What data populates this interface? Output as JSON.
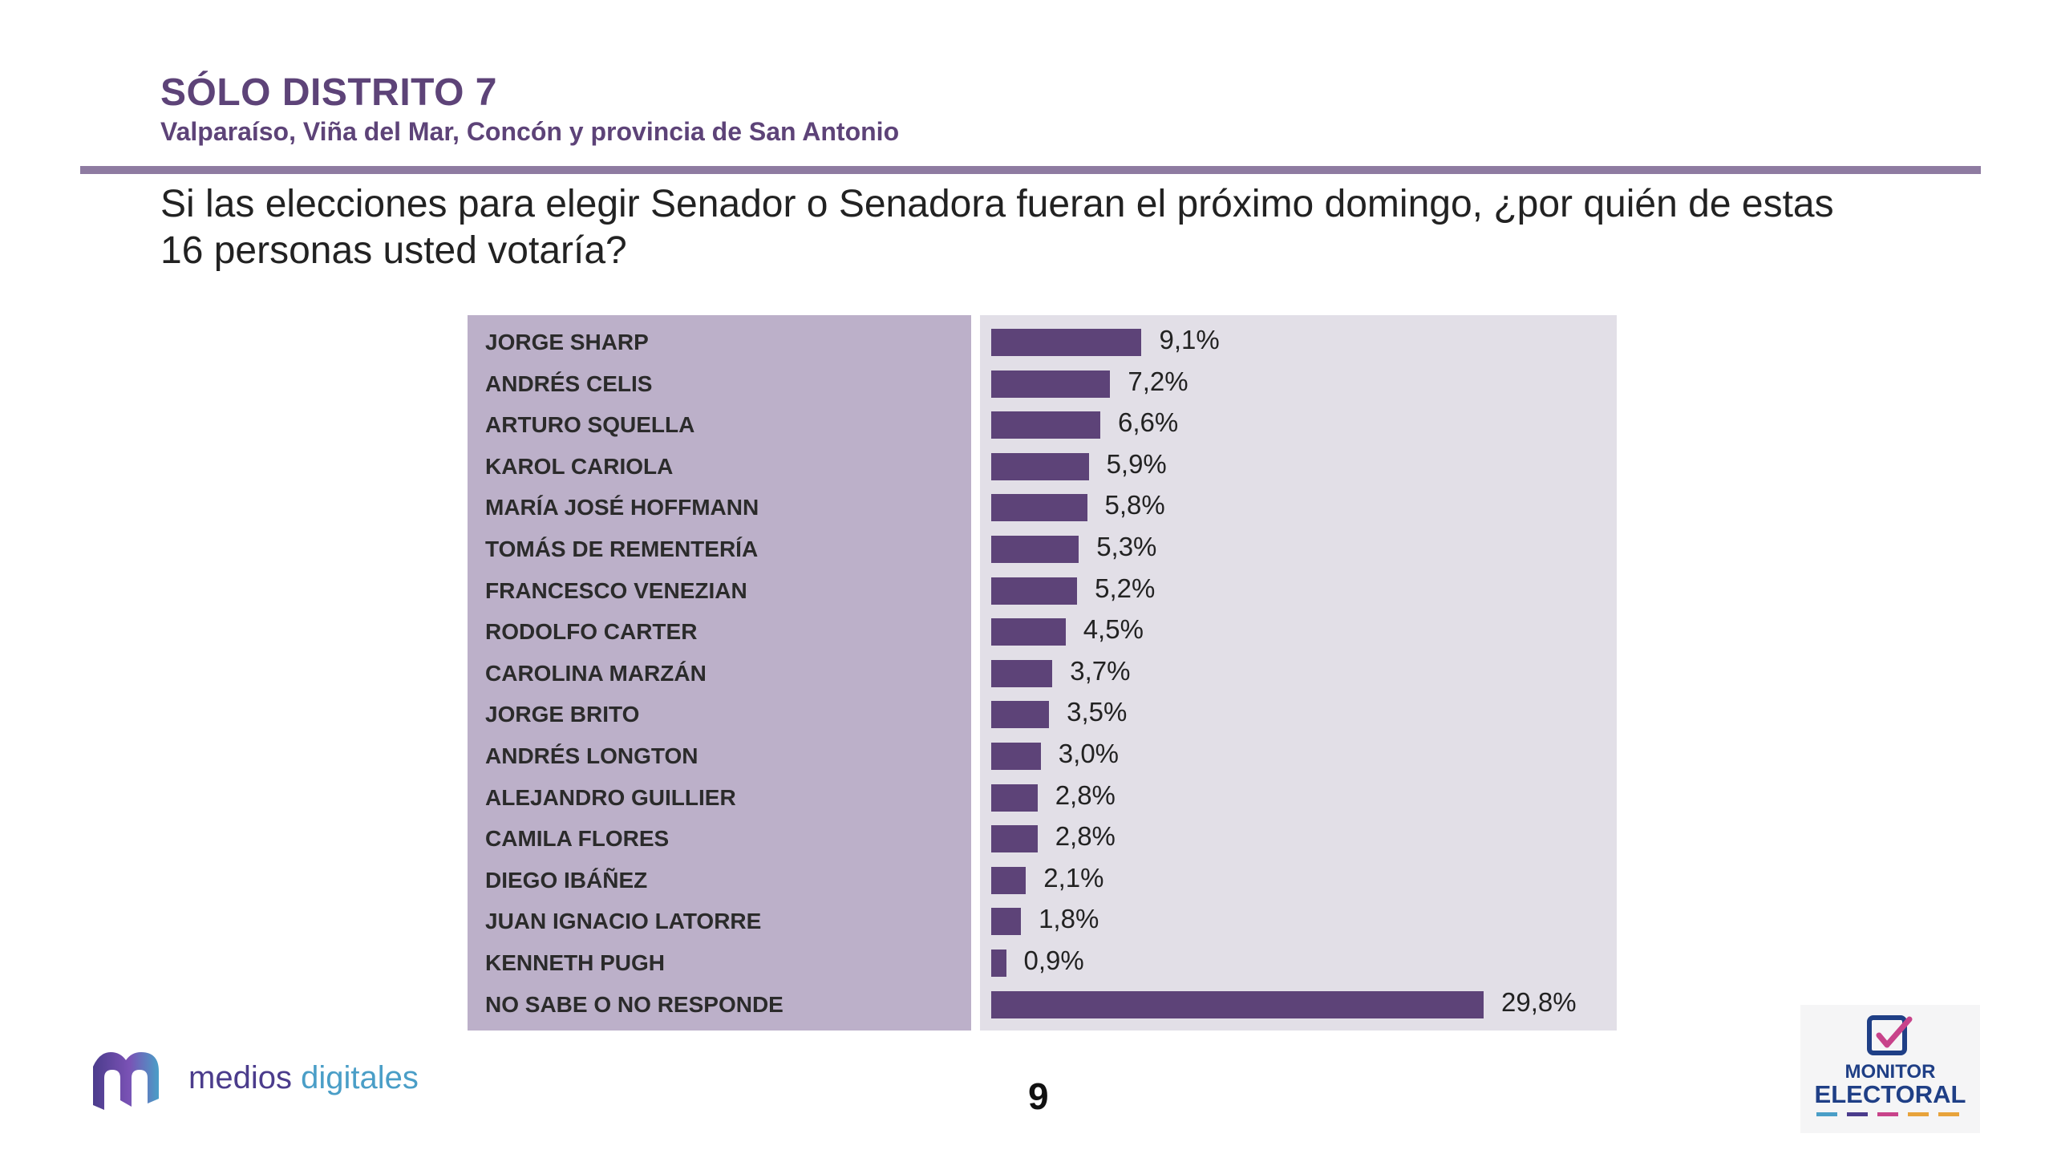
{
  "header": {
    "title": "SÓLO DISTRITO 7",
    "subtitle": "Valparaíso, Viña del Mar, Concón y provincia de San Antonio"
  },
  "question": "Si las elecciones para elegir Senador o Senadora fueran el próximo domingo, ¿por quién de estas 16 personas usted votaría?",
  "chart_data": {
    "type": "bar",
    "orientation": "horizontal",
    "categories": [
      "JORGE SHARP",
      "ANDRÉS CELIS",
      "ARTURO SQUELLA",
      "KAROL CARIOLA",
      "MARÍA JOSÉ HOFFMANN",
      "TOMÁS DE REMENTERÍA",
      "FRANCESCO VENEZIAN",
      "RODOLFO CARTER",
      "CAROLINA MARZÁN",
      "JORGE BRITO",
      "ANDRÉS LONGTON",
      "ALEJANDRO GUILLIER",
      "CAMILA FLORES",
      "DIEGO IBÁÑEZ",
      "JUAN IGNACIO LATORRE",
      "KENNETH PUGH",
      "NO SABE O NO RESPONDE"
    ],
    "values": [
      9.1,
      7.2,
      6.6,
      5.9,
      5.8,
      5.3,
      5.2,
      4.5,
      3.7,
      3.5,
      3.0,
      2.8,
      2.8,
      2.1,
      1.8,
      0.9,
      29.8
    ],
    "value_labels": [
      "9,1%",
      "7,2%",
      "6,6%",
      "5,9%",
      "5,8%",
      "5,3%",
      "5,2%",
      "4,5%",
      "3,7%",
      "3,5%",
      "3,0%",
      "2,8%",
      "2,8%",
      "2,1%",
      "1,8%",
      "0,9%",
      "29,8%"
    ],
    "unit": "%",
    "xlim": [
      0,
      29.8
    ],
    "grid": false,
    "colors": {
      "bar": "#5d4378",
      "label_panel": "#bcb0c9",
      "bar_panel": "#e2dfe7"
    }
  },
  "footer": {
    "brand_word1": "medios",
    "brand_word2": "digitales",
    "page_number": "9",
    "monitor_line1": "MONITOR",
    "monitor_line2": "ELECTORAL",
    "monitor_icon": "ballot-check-icon",
    "brand_icon": "medios-digitales-logo-icon"
  }
}
